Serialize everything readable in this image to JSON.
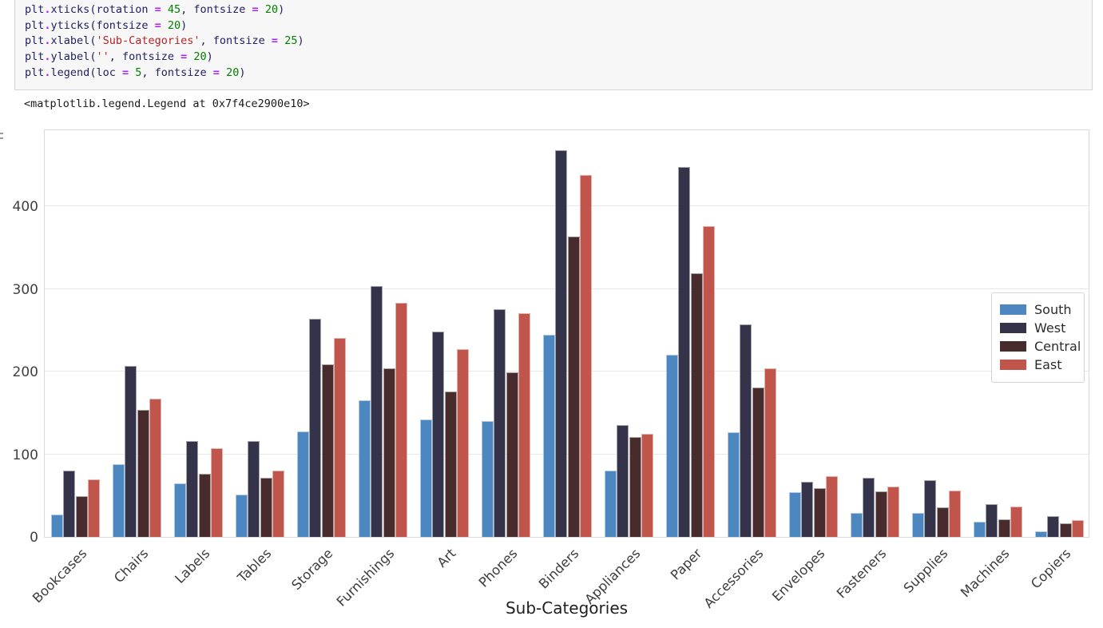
{
  "notebook": {
    "code_lines": [
      [
        {
          "t": "plt",
          "c": "d"
        },
        {
          "t": ".",
          "c": "o"
        },
        {
          "t": "xticks",
          "c": "d"
        },
        {
          "t": "(rotation ",
          "c": "d"
        },
        {
          "t": "=",
          "c": "o"
        },
        {
          "t": " ",
          "c": "d"
        },
        {
          "t": "45",
          "c": "n"
        },
        {
          "t": ", fontsize ",
          "c": "d"
        },
        {
          "t": "=",
          "c": "o"
        },
        {
          "t": " ",
          "c": "d"
        },
        {
          "t": "20",
          "c": "n"
        },
        {
          "t": ")",
          "c": "d"
        }
      ],
      [
        {
          "t": "plt",
          "c": "d"
        },
        {
          "t": ".",
          "c": "o"
        },
        {
          "t": "yticks",
          "c": "d"
        },
        {
          "t": "(fontsize ",
          "c": "d"
        },
        {
          "t": "=",
          "c": "o"
        },
        {
          "t": " ",
          "c": "d"
        },
        {
          "t": "20",
          "c": "n"
        },
        {
          "t": ")",
          "c": "d"
        }
      ],
      [
        {
          "t": "plt",
          "c": "d"
        },
        {
          "t": ".",
          "c": "o"
        },
        {
          "t": "xlabel",
          "c": "d"
        },
        {
          "t": "(",
          "c": "d"
        },
        {
          "t": "'Sub-Categories'",
          "c": "s"
        },
        {
          "t": ", fontsize ",
          "c": "d"
        },
        {
          "t": "=",
          "c": "o"
        },
        {
          "t": " ",
          "c": "d"
        },
        {
          "t": "25",
          "c": "n"
        },
        {
          "t": ")",
          "c": "d"
        }
      ],
      [
        {
          "t": "plt",
          "c": "d"
        },
        {
          "t": ".",
          "c": "o"
        },
        {
          "t": "ylabel",
          "c": "d"
        },
        {
          "t": "(",
          "c": "d"
        },
        {
          "t": "''",
          "c": "s"
        },
        {
          "t": ", fontsize ",
          "c": "d"
        },
        {
          "t": "=",
          "c": "o"
        },
        {
          "t": " ",
          "c": "d"
        },
        {
          "t": "20",
          "c": "n"
        },
        {
          "t": ")",
          "c": "d"
        }
      ],
      [
        {
          "t": "plt",
          "c": "d"
        },
        {
          "t": ".",
          "c": "o"
        },
        {
          "t": "legend",
          "c": "d"
        },
        {
          "t": "(loc ",
          "c": "d"
        },
        {
          "t": "=",
          "c": "o"
        },
        {
          "t": " ",
          "c": "d"
        },
        {
          "t": "5",
          "c": "n"
        },
        {
          "t": ", fontsize ",
          "c": "d"
        },
        {
          "t": "=",
          "c": "o"
        },
        {
          "t": " ",
          "c": "d"
        },
        {
          "t": "20",
          "c": "n"
        },
        {
          "t": ")",
          "c": "d"
        }
      ]
    ],
    "output_text": "<matplotlib.legend.Legend at 0x7f4ce2900e10>"
  },
  "chart_data": {
    "type": "bar",
    "title": "",
    "xlabel": "Sub-Categories",
    "ylabel": "",
    "categories": [
      "Bookcases",
      "Chairs",
      "Labels",
      "Tables",
      "Storage",
      "Furnishings",
      "Art",
      "Phones",
      "Binders",
      "Appliances",
      "Paper",
      "Accessories",
      "Envelopes",
      "Fasteners",
      "Supplies",
      "Machines",
      "Copiers"
    ],
    "series": [
      {
        "name": "South",
        "color": "#4c87c0",
        "values": [
          27,
          88,
          65,
          51,
          128,
          165,
          142,
          140,
          245,
          80,
          221,
          127,
          54,
          29,
          29,
          18,
          7
        ]
      },
      {
        "name": "West",
        "color": "#343349",
        "values": [
          80,
          207,
          116,
          116,
          264,
          304,
          249,
          276,
          468,
          135,
          448,
          257,
          67,
          72,
          69,
          40,
          25
        ]
      },
      {
        "name": "Central",
        "color": "#472b2d",
        "values": [
          49,
          154,
          76,
          72,
          209,
          204,
          176,
          199,
          364,
          121,
          319,
          181,
          59,
          55,
          36,
          21,
          16
        ]
      },
      {
        "name": "East",
        "color": "#c0564b",
        "values": [
          70,
          167,
          107,
          80,
          241,
          283,
          227,
          271,
          438,
          125,
          376,
          204,
          74,
          61,
          56,
          37,
          20
        ]
      }
    ],
    "yticks": [
      0,
      100,
      200,
      300,
      400
    ],
    "ylim": [
      0,
      494
    ],
    "grid": "horizontal",
    "legend_position": "center right"
  }
}
